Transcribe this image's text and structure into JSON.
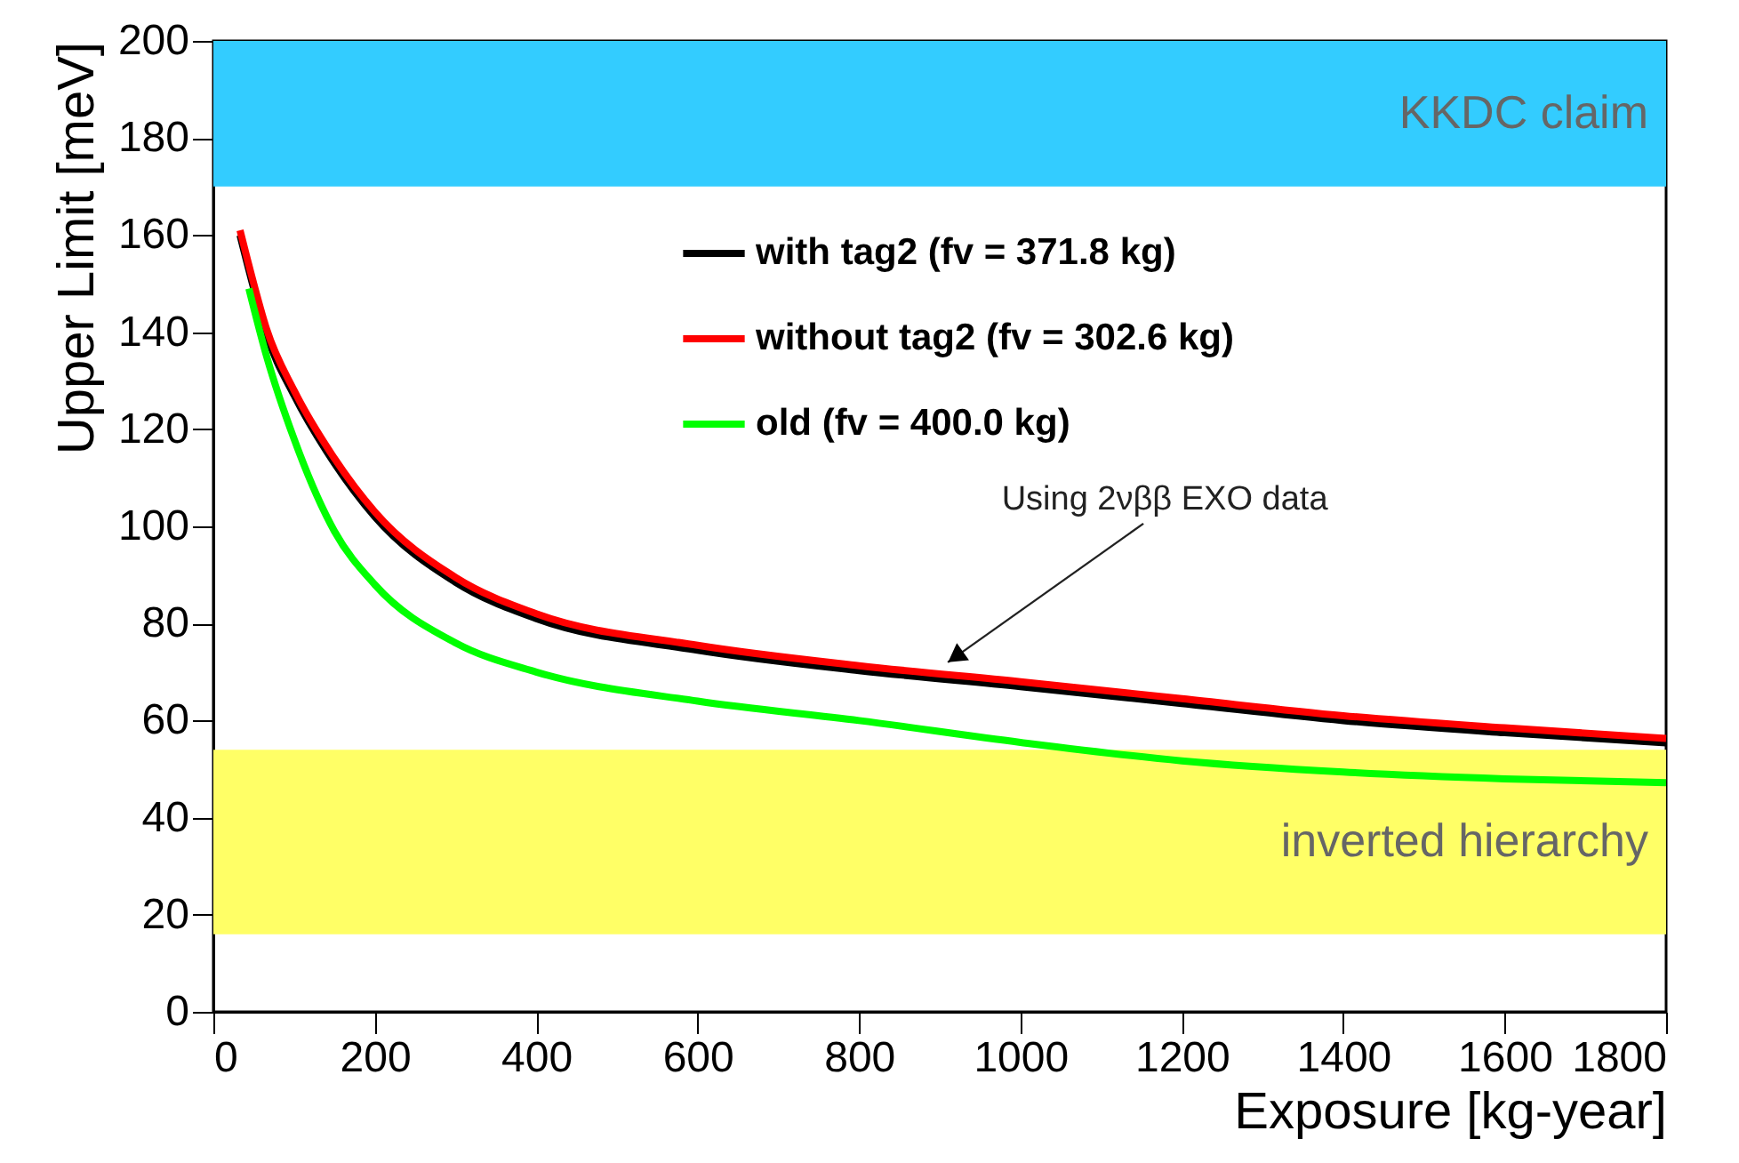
{
  "chart_data": {
    "type": "line",
    "xlabel": "Exposure [kg-year]",
    "ylabel": "Upper Limit [meV]",
    "xlim": [
      0,
      1800
    ],
    "xticks": [
      0,
      200,
      400,
      600,
      800,
      1000,
      1200,
      1400,
      1600,
      1800
    ],
    "ylim": [
      0,
      200
    ],
    "yticks": [
      0,
      20,
      40,
      60,
      80,
      100,
      120,
      140,
      160,
      180,
      200
    ],
    "grid": false,
    "legend": "top right",
    "line_style": "solid",
    "marker": "none",
    "series": [
      {
        "name": "with tag2 (fv = 371.8 kg)",
        "color": "#000000",
        "x": [
          33,
          50,
          66,
          100,
          150,
          200,
          300,
          400,
          600,
          800,
          1000,
          1200,
          1400,
          1600,
          1800
        ],
        "values": [
          160,
          149,
          139.5,
          127,
          113,
          102,
          88.5,
          81,
          74.5,
          70.3,
          67,
          63.5,
          60,
          57.5,
          55.4
        ]
      },
      {
        "name": "without tag2 (fv = 302.6 kg)",
        "color": "#ff0000",
        "x": [
          33,
          50,
          66,
          100,
          150,
          200,
          300,
          400,
          600,
          800,
          1000,
          1200,
          1400,
          1600,
          1800
        ],
        "values": [
          161,
          150,
          140.6,
          128,
          114,
          103,
          89.5,
          82,
          75.5,
          71.3,
          68,
          64.5,
          61,
          58.5,
          56.3
        ]
      },
      {
        "name": "old (fv = 400.0 kg)",
        "color": "#00ff00",
        "x": [
          44,
          66,
          100,
          150,
          200,
          300,
          400,
          600,
          800,
          1000,
          1200,
          1400,
          1600,
          1800
        ],
        "values": [
          149,
          135,
          118,
          99,
          88,
          76,
          70,
          64,
          60,
          55.5,
          51.7,
          49.4,
          48,
          47.2
        ]
      }
    ],
    "bands": [
      {
        "axis": "y",
        "from": 170,
        "to": 200,
        "label": "KKDC claim",
        "color": "#33ccff"
      },
      {
        "axis": "y",
        "from": 16,
        "to": 54,
        "label": "inverted hierarchy",
        "color": "#ffff66"
      }
    ],
    "annotations": [
      {
        "text": "Using 2νββ EXO data",
        "x": 910,
        "y": 72
      }
    ]
  }
}
